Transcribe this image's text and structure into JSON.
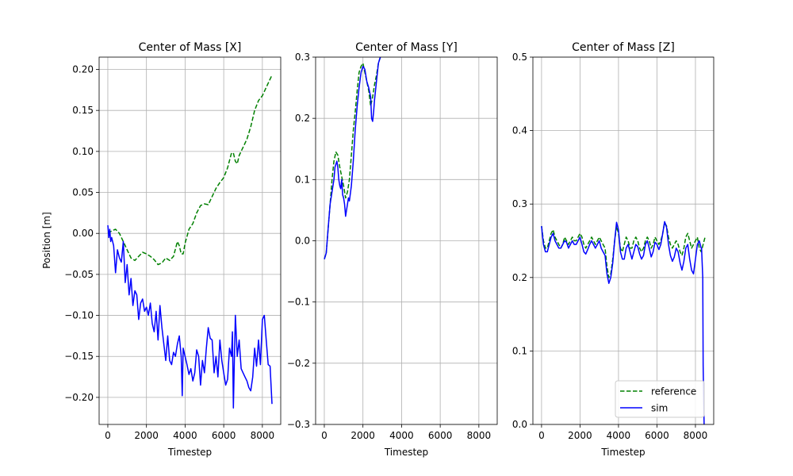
{
  "chart_data": [
    {
      "type": "line",
      "title": "Center of Mass [X]",
      "xlabel": "Timestep",
      "ylabel": "Position [m]",
      "xlim": [
        -450,
        8950
      ],
      "ylim": [
        -0.233,
        0.215
      ],
      "grid": true,
      "x_ticks": [
        0,
        2000,
        4000,
        6000,
        8000
      ],
      "x_tick_labels": [
        "0",
        "2000",
        "4000",
        "6000",
        "8000"
      ],
      "y_ticks": [
        0.2,
        0.15,
        0.1,
        0.05,
        0.0,
        -0.05,
        -0.1,
        -0.15,
        -0.2
      ],
      "y_tick_labels": [
        "0.20",
        "0.15",
        "0.10",
        "0.05",
        "0.00",
        "−0.05",
        "−0.10",
        "−0.15",
        "−0.20"
      ],
      "series": [
        {
          "name": "reference",
          "color": "#008000",
          "dash": true,
          "x": [
            0,
            200,
            400,
            600,
            800,
            1000,
            1200,
            1400,
            1600,
            1800,
            2000,
            2200,
            2400,
            2600,
            2800,
            3000,
            3200,
            3400,
            3600,
            3700,
            3800,
            3900,
            4000,
            4200,
            4400,
            4600,
            4800,
            5000,
            5200,
            5400,
            5600,
            5800,
            6000,
            6200,
            6400,
            6500,
            6600,
            6700,
            6800,
            7000,
            7200,
            7400,
            7600,
            7800,
            8000,
            8200,
            8500
          ],
          "y": [
            0.0,
            0.003,
            0.005,
            0.0,
            -0.01,
            -0.02,
            -0.03,
            -0.033,
            -0.028,
            -0.023,
            -0.025,
            -0.028,
            -0.032,
            -0.038,
            -0.036,
            -0.03,
            -0.033,
            -0.028,
            -0.01,
            -0.015,
            -0.025,
            -0.025,
            -0.012,
            0.005,
            0.012,
            0.025,
            0.034,
            0.036,
            0.035,
            0.045,
            0.055,
            0.062,
            0.068,
            0.08,
            0.098,
            0.098,
            0.088,
            0.085,
            0.095,
            0.105,
            0.115,
            0.13,
            0.15,
            0.162,
            0.168,
            0.178,
            0.193
          ]
        },
        {
          "name": "sim",
          "color": "#0000ff",
          "dash": false,
          "x": [
            0,
            50,
            100,
            150,
            200,
            300,
            400,
            500,
            600,
            700,
            800,
            900,
            1000,
            1100,
            1200,
            1300,
            1400,
            1500,
            1600,
            1700,
            1800,
            1900,
            2000,
            2100,
            2200,
            2300,
            2400,
            2500,
            2600,
            2700,
            2800,
            2900,
            3000,
            3100,
            3200,
            3300,
            3400,
            3500,
            3600,
            3700,
            3800,
            3850,
            3900,
            4000,
            4100,
            4200,
            4300,
            4400,
            4500,
            4600,
            4700,
            4800,
            4900,
            5000,
            5100,
            5200,
            5300,
            5400,
            5500,
            5600,
            5700,
            5800,
            5900,
            6000,
            6100,
            6200,
            6300,
            6400,
            6450,
            6500,
            6550,
            6600,
            6700,
            6800,
            6900,
            7000,
            7100,
            7200,
            7300,
            7400,
            7500,
            7600,
            7700,
            7800,
            7900,
            8000,
            8100,
            8200,
            8300,
            8400,
            8500
          ],
          "y": [
            0.01,
            -0.005,
            0.005,
            -0.01,
            -0.005,
            -0.015,
            -0.048,
            -0.02,
            -0.03,
            -0.035,
            -0.01,
            -0.06,
            -0.038,
            -0.075,
            -0.055,
            -0.088,
            -0.07,
            -0.075,
            -0.105,
            -0.085,
            -0.08,
            -0.095,
            -0.09,
            -0.1,
            -0.085,
            -0.11,
            -0.12,
            -0.095,
            -0.13,
            -0.088,
            -0.115,
            -0.135,
            -0.155,
            -0.125,
            -0.155,
            -0.16,
            -0.145,
            -0.15,
            -0.135,
            -0.125,
            -0.15,
            -0.198,
            -0.14,
            -0.15,
            -0.16,
            -0.172,
            -0.165,
            -0.18,
            -0.17,
            -0.142,
            -0.15,
            -0.185,
            -0.155,
            -0.17,
            -0.14,
            -0.115,
            -0.128,
            -0.13,
            -0.17,
            -0.15,
            -0.175,
            -0.13,
            -0.155,
            -0.17,
            -0.185,
            -0.178,
            -0.14,
            -0.15,
            -0.12,
            -0.213,
            -0.155,
            -0.1,
            -0.15,
            -0.13,
            -0.165,
            -0.17,
            -0.175,
            -0.18,
            -0.188,
            -0.192,
            -0.175,
            -0.14,
            -0.162,
            -0.13,
            -0.16,
            -0.105,
            -0.1,
            -0.13,
            -0.16,
            -0.162,
            -0.208
          ]
        }
      ]
    },
    {
      "type": "line",
      "title": "Center of Mass [Y]",
      "xlabel": "Timestep",
      "ylabel": "",
      "xlim": [
        -450,
        8950
      ],
      "ylim": [
        -0.3,
        0.3
      ],
      "grid": true,
      "x_ticks": [
        0,
        2000,
        4000,
        6000,
        8000
      ],
      "x_tick_labels": [
        "0",
        "2000",
        "4000",
        "6000",
        "8000"
      ],
      "y_ticks": [
        0.3,
        0.2,
        0.1,
        0.0,
        -0.1,
        -0.2,
        -0.3
      ],
      "y_tick_labels": [
        "0.3",
        "0.2",
        "0.1",
        "0.0",
        "−0.1",
        "−0.2",
        "−0.3"
      ],
      "series": [
        {
          "name": "reference",
          "color": "#008000",
          "dash": true,
          "x": [
            0,
            100,
            200,
            300,
            400,
            500,
            600,
            700,
            800,
            900,
            1000,
            1100,
            1200,
            1300,
            1400,
            1500,
            1600,
            1700,
            1800,
            1900,
            2000,
            2100,
            2200,
            2300,
            2400,
            2500,
            2600,
            2700,
            2800,
            2900
          ],
          "y": [
            -0.03,
            -0.02,
            0.02,
            0.06,
            0.1,
            0.13,
            0.145,
            0.14,
            0.12,
            0.105,
            0.09,
            0.07,
            0.08,
            0.1,
            0.14,
            0.18,
            0.21,
            0.245,
            0.275,
            0.285,
            0.29,
            0.275,
            0.26,
            0.245,
            0.22,
            0.235,
            0.255,
            0.27,
            0.29,
            0.3
          ]
        },
        {
          "name": "sim",
          "color": "#0000ff",
          "dash": false,
          "x": [
            0,
            100,
            200,
            300,
            400,
            500,
            550,
            600,
            650,
            700,
            750,
            800,
            850,
            900,
            950,
            1000,
            1050,
            1100,
            1150,
            1200,
            1250,
            1300,
            1400,
            1500,
            1600,
            1700,
            1800,
            1900,
            2000,
            2100,
            2200,
            2300,
            2400,
            2450,
            2500,
            2550,
            2600,
            2700,
            2800,
            2900
          ],
          "y": [
            -0.03,
            -0.02,
            0.02,
            0.06,
            0.08,
            0.1,
            0.12,
            0.125,
            0.13,
            0.12,
            0.1,
            0.09,
            0.085,
            0.1,
            0.075,
            0.07,
            0.06,
            0.04,
            0.05,
            0.06,
            0.07,
            0.065,
            0.09,
            0.13,
            0.18,
            0.22,
            0.25,
            0.275,
            0.285,
            0.28,
            0.26,
            0.25,
            0.235,
            0.2,
            0.195,
            0.21,
            0.23,
            0.26,
            0.29,
            0.3
          ]
        }
      ]
    },
    {
      "type": "line",
      "title": "Center of Mass [Z]",
      "xlabel": "Timestep",
      "ylabel": "",
      "xlim": [
        -450,
        8950
      ],
      "ylim": [
        0.0,
        0.5
      ],
      "grid": true,
      "x_ticks": [
        0,
        2000,
        4000,
        6000,
        8000
      ],
      "x_tick_labels": [
        "0",
        "2000",
        "4000",
        "6000",
        "8000"
      ],
      "y_ticks": [
        0.5,
        0.4,
        0.3,
        0.2,
        0.1,
        0.0
      ],
      "y_tick_labels": [
        "0.5",
        "0.4",
        "0.3",
        "0.2",
        "0.1",
        "0.0"
      ],
      "legend": {
        "location": "bottom-right",
        "entries": [
          "reference",
          "sim"
        ]
      },
      "series": [
        {
          "name": "reference",
          "color": "#008000",
          "dash": true,
          "x": [
            0,
            100,
            200,
            300,
            400,
            500,
            600,
            700,
            800,
            900,
            1000,
            1100,
            1200,
            1300,
            1400,
            1500,
            1600,
            1700,
            1800,
            1900,
            2000,
            2100,
            2200,
            2300,
            2400,
            2500,
            2600,
            2700,
            2800,
            2900,
            3000,
            3100,
            3200,
            3300,
            3400,
            3500,
            3600,
            3700,
            3800,
            3900,
            4000,
            4100,
            4200,
            4300,
            4400,
            4500,
            4600,
            4700,
            4800,
            4900,
            5000,
            5100,
            5200,
            5300,
            5400,
            5500,
            5600,
            5700,
            5800,
            5900,
            6000,
            6100,
            6200,
            6300,
            6400,
            6500,
            6600,
            6700,
            6800,
            6900,
            7000,
            7100,
            7200,
            7300,
            7400,
            7500,
            7600,
            7700,
            7800,
            7900,
            8000,
            8100,
            8200,
            8300,
            8400,
            8500
          ],
          "y": [
            0.27,
            0.25,
            0.24,
            0.24,
            0.25,
            0.26,
            0.265,
            0.255,
            0.25,
            0.245,
            0.24,
            0.245,
            0.255,
            0.25,
            0.245,
            0.25,
            0.255,
            0.25,
            0.25,
            0.255,
            0.26,
            0.255,
            0.245,
            0.24,
            0.245,
            0.25,
            0.255,
            0.25,
            0.245,
            0.25,
            0.255,
            0.25,
            0.245,
            0.24,
            0.215,
            0.2,
            0.205,
            0.225,
            0.25,
            0.27,
            0.26,
            0.24,
            0.235,
            0.245,
            0.255,
            0.25,
            0.24,
            0.24,
            0.25,
            0.255,
            0.25,
            0.24,
            0.235,
            0.24,
            0.25,
            0.255,
            0.25,
            0.24,
            0.245,
            0.255,
            0.25,
            0.245,
            0.25,
            0.26,
            0.275,
            0.27,
            0.255,
            0.245,
            0.24,
            0.245,
            0.25,
            0.245,
            0.235,
            0.23,
            0.24,
            0.255,
            0.26,
            0.25,
            0.24,
            0.245,
            0.25,
            0.255,
            0.24,
            0.235,
            0.245,
            0.255
          ]
        },
        {
          "name": "sim",
          "color": "#0000ff",
          "dash": false,
          "x": [
            0,
            100,
            200,
            300,
            400,
            500,
            600,
            700,
            800,
            900,
            1000,
            1100,
            1200,
            1300,
            1400,
            1500,
            1600,
            1700,
            1800,
            1900,
            2000,
            2100,
            2200,
            2300,
            2400,
            2500,
            2600,
            2700,
            2800,
            2900,
            3000,
            3100,
            3200,
            3300,
            3400,
            3500,
            3600,
            3700,
            3800,
            3900,
            4000,
            4100,
            4200,
            4300,
            4400,
            4500,
            4600,
            4700,
            4800,
            4900,
            5000,
            5100,
            5200,
            5300,
            5400,
            5500,
            5600,
            5700,
            5800,
            5900,
            6000,
            6100,
            6200,
            6300,
            6400,
            6500,
            6600,
            6700,
            6800,
            6900,
            7000,
            7100,
            7200,
            7300,
            7400,
            7500,
            7600,
            7700,
            7800,
            7900,
            8000,
            8100,
            8200,
            8250,
            8300,
            8320,
            8380,
            8400,
            8450
          ],
          "y": [
            0.27,
            0.245,
            0.235,
            0.235,
            0.245,
            0.255,
            0.26,
            0.25,
            0.245,
            0.24,
            0.24,
            0.245,
            0.25,
            0.248,
            0.24,
            0.245,
            0.25,
            0.245,
            0.245,
            0.25,
            0.255,
            0.245,
            0.235,
            0.232,
            0.238,
            0.245,
            0.25,
            0.245,
            0.24,
            0.245,
            0.25,
            0.24,
            0.235,
            0.23,
            0.205,
            0.192,
            0.2,
            0.22,
            0.25,
            0.275,
            0.265,
            0.235,
            0.225,
            0.225,
            0.24,
            0.245,
            0.235,
            0.225,
            0.235,
            0.245,
            0.242,
            0.232,
            0.225,
            0.23,
            0.245,
            0.25,
            0.24,
            0.228,
            0.235,
            0.248,
            0.245,
            0.238,
            0.245,
            0.26,
            0.276,
            0.268,
            0.245,
            0.23,
            0.222,
            0.228,
            0.24,
            0.235,
            0.22,
            0.21,
            0.222,
            0.24,
            0.245,
            0.225,
            0.21,
            0.205,
            0.225,
            0.245,
            0.25,
            0.245,
            0.24,
            0.24,
            0.2,
            0.08,
            0.0
          ]
        }
      ]
    }
  ]
}
